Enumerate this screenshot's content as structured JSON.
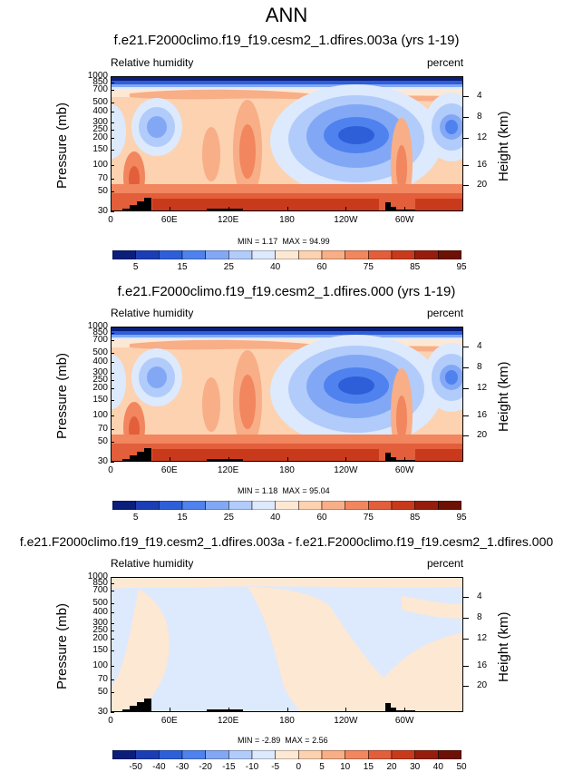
{
  "figure": {
    "title": "ANN"
  },
  "colorbar_1": {
    "colors": [
      "#0a1e7a",
      "#1c3eb5",
      "#2e5fd9",
      "#4f82ee",
      "#82a8f5",
      "#b1cbfb",
      "#dde9fd",
      "#fde8d4",
      "#fcd2b0",
      "#f8ae86",
      "#f1865f",
      "#e35e3a",
      "#c93a1c",
      "#961d0c",
      "#6c1104"
    ],
    "labels": [
      "5",
      "15",
      "25",
      "40",
      "60",
      "75",
      "85",
      "95"
    ]
  },
  "colorbar_diff": {
    "colors": [
      "#0a1e7a",
      "#1c3eb5",
      "#2e5fd9",
      "#4f82ee",
      "#82a8f5",
      "#b1cbfb",
      "#dde9fd",
      "#fde8d4",
      "#fcd2b0",
      "#f8ae86",
      "#f1865f",
      "#e35e3a",
      "#c93a1c",
      "#961d0c",
      "#6c1104"
    ],
    "labels": [
      "-50",
      "-40",
      "-30",
      "-20",
      "-15",
      "-10",
      "-5",
      "0",
      "5",
      "10",
      "15",
      "20",
      "30",
      "40",
      "50"
    ]
  },
  "axes": {
    "ylabel": "Pressure (mb)",
    "y2label": "Height (km)",
    "left_label": "Relative humidity",
    "right_label": "percent",
    "pressure_ticks": [
      "30",
      "50",
      "70",
      "100",
      "150",
      "200",
      "250",
      "300",
      "400",
      "500",
      "700",
      "850",
      "1000"
    ],
    "height_ticks": [
      "20",
      "16",
      "12",
      "8",
      "4"
    ],
    "x_ticks": [
      "0",
      "60E",
      "120E",
      "180",
      "120W",
      "60W"
    ]
  },
  "chart_data": [
    {
      "type": "heatmap",
      "title": "f.e21.F2000climo.f19_f19.cesm2_1.dfires.003a (yrs 1-19)",
      "variable": "Relative humidity",
      "units": "percent",
      "xlabel": "",
      "ylabel": "Pressure (mb)",
      "y2label": "Height (km)",
      "x_range": [
        "0",
        "360"
      ],
      "x_ticks": [
        "0",
        "60E",
        "120E",
        "180",
        "120W",
        "60W"
      ],
      "y_range_mb": [
        1000,
        30
      ],
      "y_scale": "log",
      "min": "1.17",
      "max": "94.99",
      "colorbar_levels": [
        5,
        10,
        15,
        20,
        25,
        30,
        40,
        50,
        60,
        70,
        75,
        80,
        85,
        90,
        95
      ]
    },
    {
      "type": "heatmap",
      "title": "f.e21.F2000climo.f19_f19.cesm2_1.dfires.000 (yrs 1-19)",
      "variable": "Relative humidity",
      "units": "percent",
      "xlabel": "",
      "ylabel": "Pressure (mb)",
      "y2label": "Height (km)",
      "x_range": [
        "0",
        "360"
      ],
      "x_ticks": [
        "0",
        "60E",
        "120E",
        "180",
        "120W",
        "60W"
      ],
      "y_range_mb": [
        1000,
        30
      ],
      "y_scale": "log",
      "min": "1.18",
      "max": "95.04",
      "colorbar_levels": [
        5,
        10,
        15,
        20,
        25,
        30,
        40,
        50,
        60,
        70,
        75,
        80,
        85,
        90,
        95
      ]
    },
    {
      "type": "heatmap",
      "title": "f.e21.F2000climo.f19_f19.cesm2_1.dfires.003a - f.e21.F2000climo.f19_f19.cesm2_1.dfires.000",
      "variable": "Relative humidity",
      "units": "percent",
      "xlabel": "",
      "ylabel": "Pressure (mb)",
      "y2label": "Height (km)",
      "x_range": [
        "0",
        "360"
      ],
      "x_ticks": [
        "0",
        "60E",
        "120E",
        "180",
        "120W",
        "60W"
      ],
      "y_range_mb": [
        1000,
        30
      ],
      "y_scale": "log",
      "min": "-2.89",
      "max": "2.56",
      "colorbar_levels": [
        -50,
        -40,
        -30,
        -20,
        -15,
        -10,
        -5,
        0,
        5,
        10,
        15,
        20,
        30,
        40,
        50
      ]
    }
  ]
}
